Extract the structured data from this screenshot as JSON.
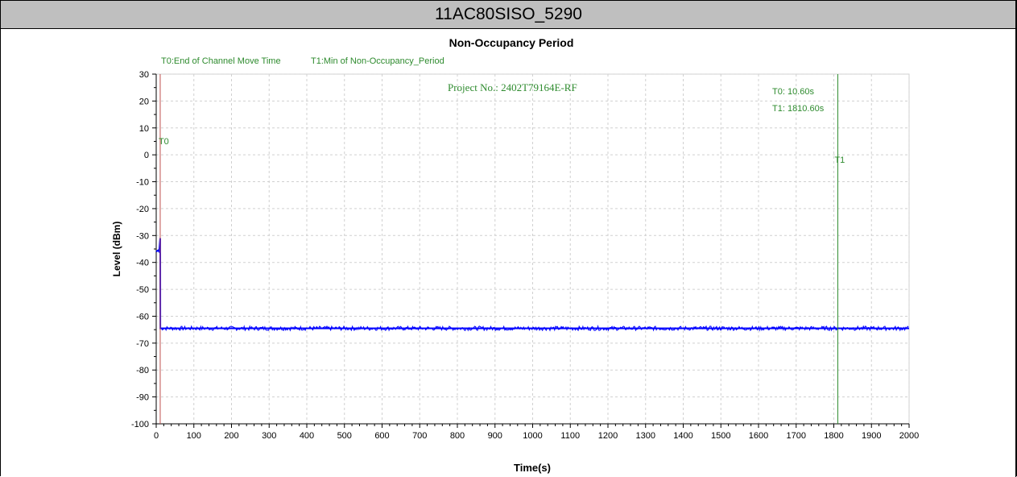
{
  "header": {
    "title": "11AC80SISO_5290"
  },
  "chart_data": {
    "type": "line",
    "title": "Non-Occupancy Period",
    "xlabel": "Time(s)",
    "ylabel": "Level (dBm)",
    "xlim": [
      0,
      2000
    ],
    "ylim": [
      -100,
      30
    ],
    "x_ticks": [
      0,
      100,
      200,
      300,
      400,
      500,
      600,
      700,
      800,
      900,
      1000,
      1100,
      1200,
      1300,
      1400,
      1500,
      1600,
      1700,
      1800,
      1900,
      2000
    ],
    "y_ticks": [
      30,
      20,
      10,
      0,
      -10,
      -20,
      -30,
      -40,
      -50,
      -60,
      -70,
      -80,
      -90,
      -100
    ],
    "grid": true,
    "legend_items": [
      "T0:End of Channel Move Time",
      "T1:Min of Non-Occupancy_Period"
    ],
    "annotation": "Project No.: 2402T79164E-RF",
    "readouts": [
      "T0: 10.60s",
      "T1: 1810.60s"
    ],
    "markers": [
      {
        "label": "T0",
        "x": 10.6,
        "color": "#c0504d"
      },
      {
        "label": "T1",
        "x": 1810.6,
        "color": "#2e8b2e"
      }
    ],
    "series": [
      {
        "color": "#0000ff",
        "x": [
          0,
          5,
          8,
          10,
          10.6,
          11,
          20,
          50,
          100,
          200,
          300,
          400,
          500,
          600,
          700,
          800,
          900,
          1000,
          1100,
          1200,
          1300,
          1400,
          1500,
          1600,
          1700,
          1800,
          1900,
          2000
        ],
        "values": [
          -36,
          -35.5,
          -36,
          -32,
          -31,
          -64.5,
          -64.5,
          -64.5,
          -64.5,
          -64.5,
          -64.5,
          -64.5,
          -64.5,
          -64.5,
          -64.5,
          -64.5,
          -64.5,
          -64.5,
          -64.5,
          -64.5,
          -64.5,
          -64.5,
          -64.5,
          -64.5,
          -64.5,
          -64.5,
          -64.5,
          -64.5
        ]
      }
    ]
  }
}
